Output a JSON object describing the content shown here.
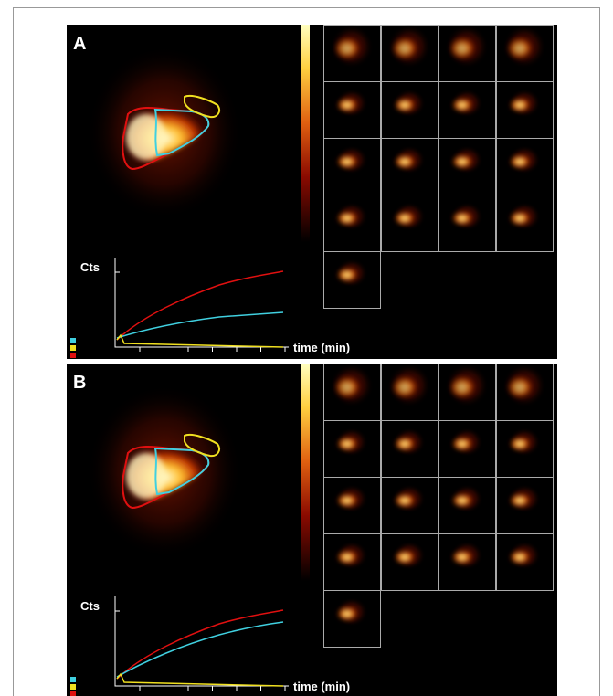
{
  "panels": [
    {
      "label": "A",
      "y_label": "Cts",
      "x_label": "time (min)"
    },
    {
      "label": "B",
      "y_label": "Cts",
      "x_label": "time (min)"
    }
  ]
}
